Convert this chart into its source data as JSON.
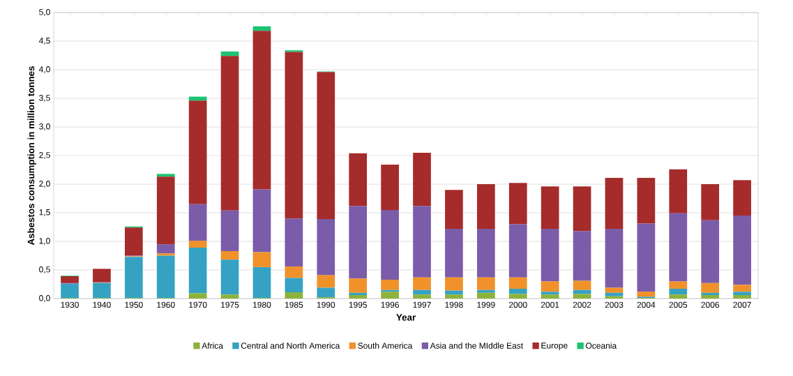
{
  "chart_data": {
    "type": "bar",
    "stacked": true,
    "xlabel": "Year",
    "ylabel": "Asbestos consumption in million tonnes",
    "categories": [
      "1930",
      "1940",
      "1950",
      "1960",
      "1970",
      "1975",
      "1980",
      "1985",
      "1990",
      "1995",
      "1996",
      "1997",
      "1998",
      "1999",
      "2000",
      "2001",
      "2002",
      "2003",
      "2004",
      "2005",
      "2006",
      "2007"
    ],
    "series": [
      {
        "name": "Africa",
        "color": "#8db33a",
        "values": [
          0.01,
          0.01,
          0.01,
          0.01,
          0.09,
          0.07,
          0.01,
          0.11,
          0.02,
          0.06,
          0.12,
          0.07,
          0.07,
          0.1,
          0.08,
          0.07,
          0.08,
          0.04,
          0.01,
          0.07,
          0.06,
          0.06
        ]
      },
      {
        "name": "Central and North America",
        "color": "#35a2c4",
        "values": [
          0.25,
          0.26,
          0.72,
          0.74,
          0.8,
          0.61,
          0.54,
          0.25,
          0.17,
          0.04,
          0.03,
          0.08,
          0.07,
          0.05,
          0.09,
          0.05,
          0.07,
          0.06,
          0.02,
          0.1,
          0.04,
          0.06
        ]
      },
      {
        "name": "South America",
        "color": "#f0912a",
        "values": [
          0.0,
          0.01,
          0.01,
          0.04,
          0.12,
          0.15,
          0.26,
          0.2,
          0.22,
          0.25,
          0.18,
          0.22,
          0.23,
          0.22,
          0.2,
          0.18,
          0.16,
          0.09,
          0.09,
          0.13,
          0.17,
          0.12
        ]
      },
      {
        "name": "Asia and the MIddle East",
        "color": "#7b5ca8",
        "values": [
          0.01,
          0.01,
          0.01,
          0.16,
          0.64,
          0.71,
          1.1,
          0.84,
          0.98,
          1.27,
          1.22,
          1.25,
          0.85,
          0.85,
          0.93,
          0.92,
          0.87,
          1.03,
          1.19,
          1.19,
          1.1,
          1.21
        ]
      },
      {
        "name": "Europe",
        "color": "#a62b2b",
        "values": [
          0.12,
          0.23,
          0.49,
          1.18,
          1.81,
          2.7,
          2.77,
          2.91,
          2.57,
          0.92,
          0.79,
          0.93,
          0.68,
          0.78,
          0.72,
          0.74,
          0.78,
          0.89,
          0.8,
          0.77,
          0.63,
          0.62
        ]
      },
      {
        "name": "Oceania",
        "color": "#1cc472",
        "values": [
          0.01,
          0.0,
          0.02,
          0.05,
          0.07,
          0.08,
          0.08,
          0.03,
          0.01,
          0.0,
          0.0,
          0.0,
          0.0,
          0.0,
          0.0,
          0.0,
          0.0,
          0.0,
          0.0,
          0.0,
          0.0,
          0.0
        ]
      }
    ],
    "ylim": [
      0,
      5
    ],
    "yticks": [
      {
        "value": 0,
        "label": "0,0"
      },
      {
        "value": 0.5,
        "label": "0,5"
      },
      {
        "value": 1,
        "label": "1,0"
      },
      {
        "value": 1.5,
        "label": "1,5"
      },
      {
        "value": 2,
        "label": "2,0"
      },
      {
        "value": 2.5,
        "label": "2,5"
      },
      {
        "value": 3,
        "label": "3,0"
      },
      {
        "value": 3.5,
        "label": "3,5"
      },
      {
        "value": 4,
        "label": "4,0"
      },
      {
        "value": 4.5,
        "label": "4,5"
      },
      {
        "value": 5,
        "label": "5,0"
      }
    ],
    "grid": "y",
    "legend": "bottom"
  }
}
